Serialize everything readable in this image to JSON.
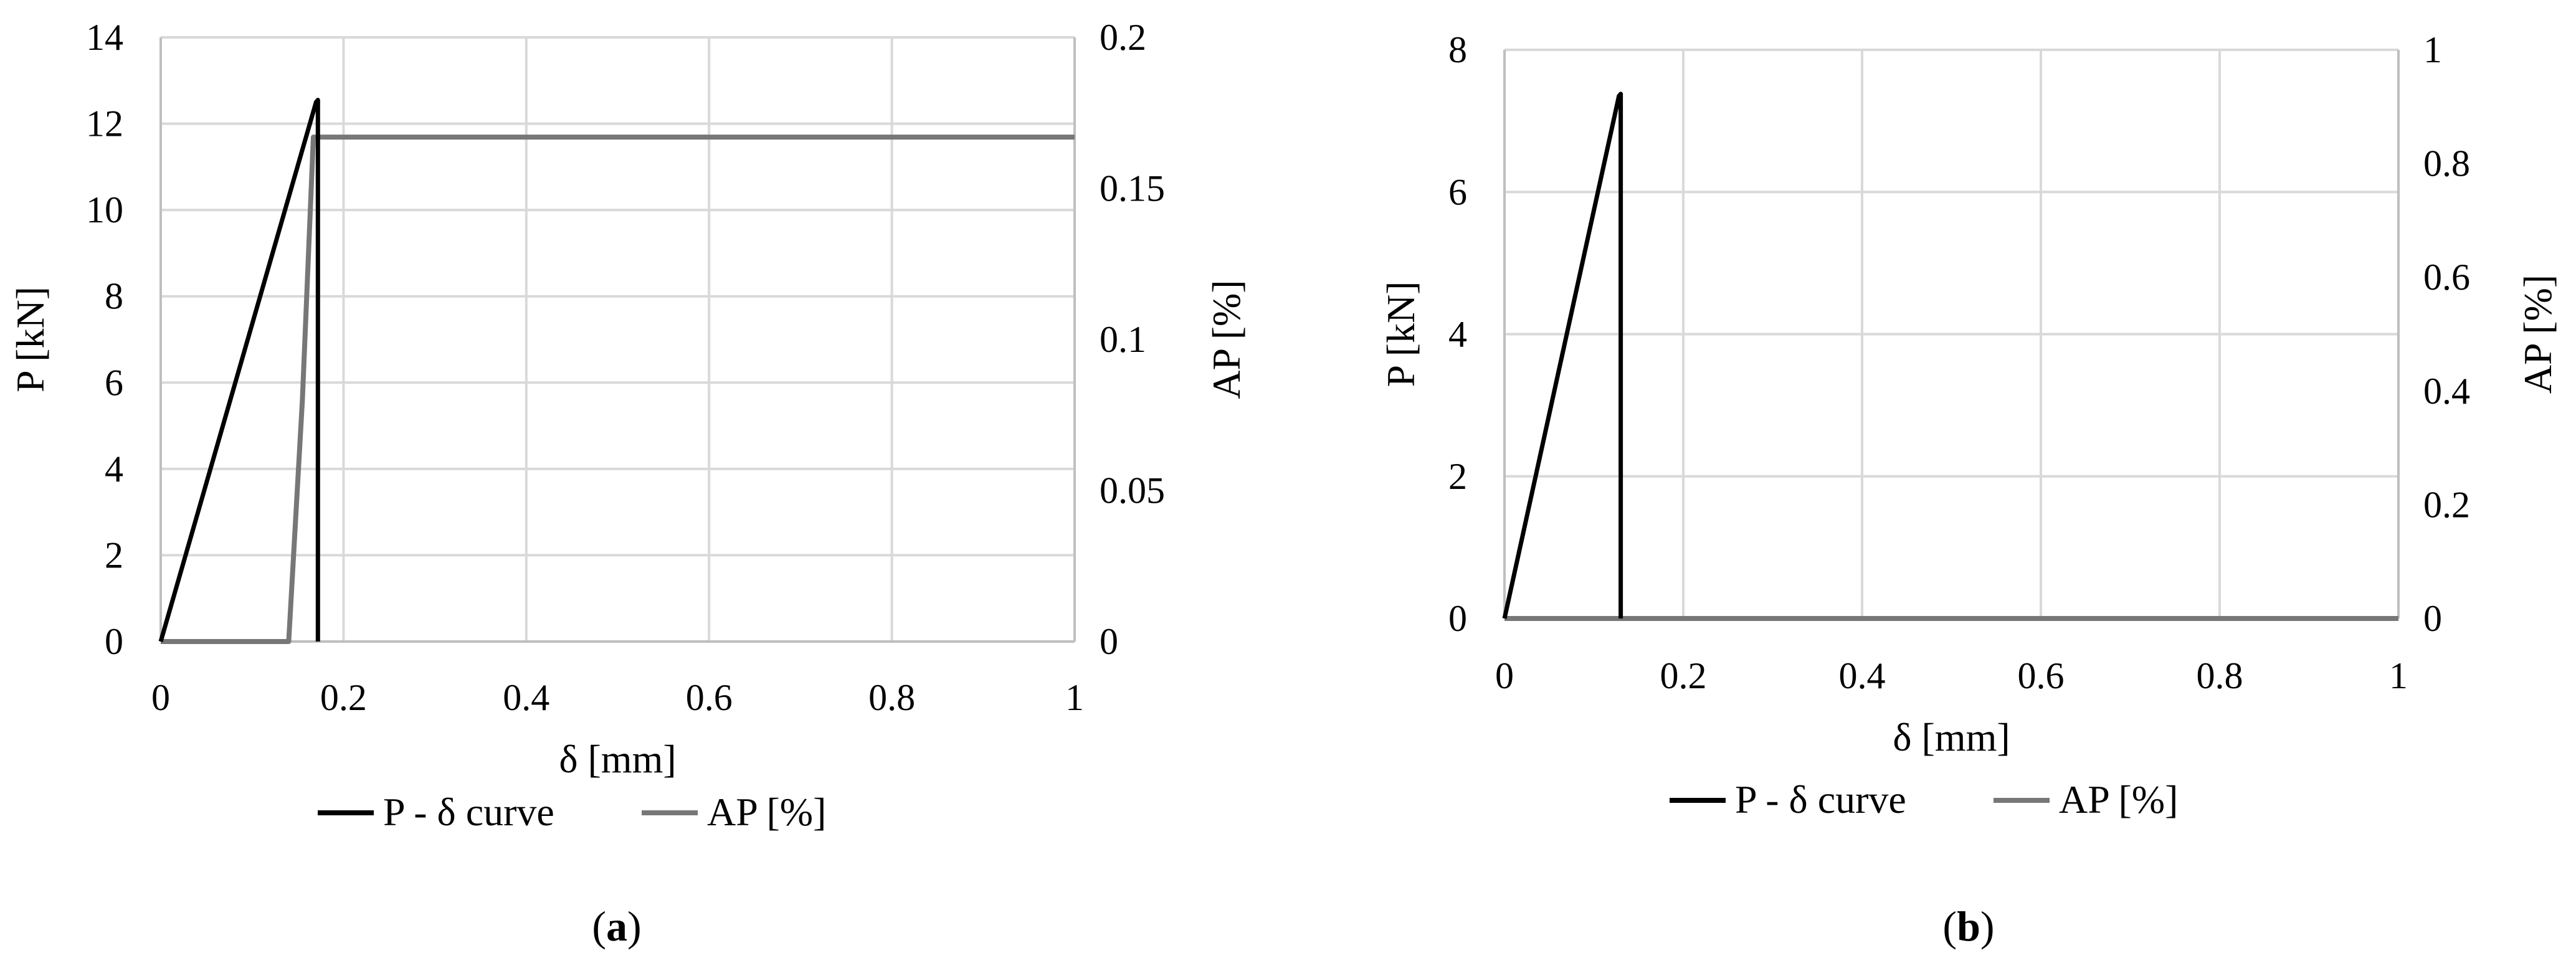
{
  "chart_data": [
    {
      "type": "line",
      "panel_label": {
        "open": "(",
        "letter": "a",
        "close": ")"
      },
      "xlabel": "δ [mm]",
      "ylabel": "P [kN]",
      "y2label": "AP [%]",
      "xlim": [
        0,
        1
      ],
      "ylim": [
        0,
        14
      ],
      "y2lim": [
        0,
        0.2
      ],
      "x_ticks": [
        "0",
        "0.2",
        "0.4",
        "0.6",
        "0.8",
        "1"
      ],
      "y_ticks": [
        "0",
        "2",
        "4",
        "6",
        "8",
        "10",
        "12",
        "14"
      ],
      "y2_ticks": [
        "0",
        "0.05",
        "0.1",
        "0.15",
        "0.2"
      ],
      "grid": true,
      "legend_position": "bottom",
      "series": [
        {
          "name": "P - δ curve",
          "axis": "left",
          "color": "#000000",
          "x": [
            0,
            0.17,
            0.172,
            0.172
          ],
          "y": [
            0,
            12.5,
            12.55,
            0
          ]
        },
        {
          "name": "AP [%]",
          "axis": "right",
          "color": "#777777",
          "x": [
            0,
            0.14,
            0.155,
            0.167,
            1.0
          ],
          "y": [
            0,
            0,
            0.08,
            0.167,
            0.167
          ]
        }
      ]
    },
    {
      "type": "line",
      "panel_label": {
        "open": "(",
        "letter": "b",
        "close": ")"
      },
      "xlabel": "δ [mm]",
      "ylabel": "P [kN]",
      "y2label": "AP [%]",
      "xlim": [
        0,
        1
      ],
      "ylim": [
        0,
        8
      ],
      "y2lim": [
        0,
        1
      ],
      "x_ticks": [
        "0",
        "0.2",
        "0.4",
        "0.6",
        "0.8",
        "1"
      ],
      "y_ticks": [
        "0",
        "2",
        "4",
        "6",
        "8"
      ],
      "y2_ticks": [
        "0",
        "0.2",
        "0.4",
        "0.6",
        "0.8",
        "1"
      ],
      "grid": true,
      "legend_position": "bottom",
      "series": [
        {
          "name": "P - δ curve",
          "axis": "left",
          "color": "#000000",
          "x": [
            0,
            0.128,
            0.13,
            0.13
          ],
          "y": [
            0,
            7.35,
            7.38,
            0
          ]
        },
        {
          "name": "AP [%]",
          "axis": "right",
          "color": "#777777",
          "x": [
            0,
            1.0
          ],
          "y": [
            0,
            0
          ]
        }
      ]
    }
  ]
}
